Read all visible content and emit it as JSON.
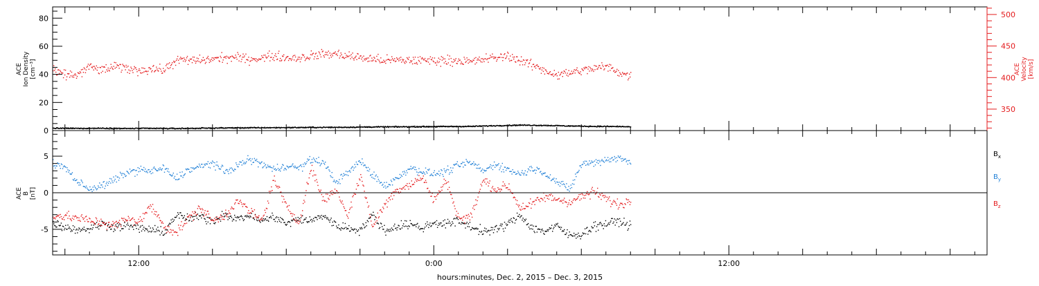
{
  "colors": {
    "axis": "#000000",
    "density": "#000000",
    "velocity": "#e41a1c",
    "bx": "#000000",
    "by": "#1f7fd6",
    "bz": "#e41a1c"
  },
  "xaxis": {
    "title": "hours:minutes, Dec.  2, 2015 – Dec.  3, 2015",
    "ticks": [
      "12:00",
      "0:00",
      "12:00"
    ],
    "tick_hours": [
      12,
      24,
      36
    ],
    "range_hours": [
      8.5,
      46.5
    ],
    "data_end_hours": 32.0
  },
  "chart_data": [
    {
      "type": "scatter",
      "panel": "plasma",
      "left_axis": {
        "label_lines": [
          "ACE",
          "Ion Density",
          "[cm⁻³]"
        ],
        "ylim": [
          0,
          88
        ],
        "ticks": [
          0,
          20,
          40,
          60,
          80
        ]
      },
      "right_axis": {
        "label_lines": [
          "ACE",
          "Velocity",
          "[km/s]"
        ],
        "ylim": [
          316,
          512
        ],
        "ticks": [
          350,
          400,
          450,
          500
        ]
      },
      "series": [
        {
          "key": "density",
          "axis": "left",
          "color": "#000000",
          "x": [
            8.5,
            9.5,
            10.5,
            11.5,
            12.5,
            13.5,
            14.5,
            15.5,
            16.5,
            17.5,
            18.5,
            19.5,
            20.5,
            21.5,
            22.5,
            23.5,
            24.5,
            25.5,
            26.5,
            27.5,
            28.5,
            29.5,
            30.5,
            31.5,
            32.0
          ],
          "y": [
            2.0,
            1.9,
            2.0,
            1.8,
            1.9,
            1.8,
            2.0,
            2.2,
            2.3,
            2.4,
            2.5,
            2.6,
            2.7,
            2.9,
            3.0,
            3.1,
            3.2,
            3.3,
            3.8,
            4.2,
            4.0,
            3.6,
            3.3,
            3.2,
            3.0
          ],
          "jitter": 0.6
        },
        {
          "key": "velocity",
          "axis": "right",
          "color": "#e41a1c",
          "x": [
            8.5,
            9.0,
            9.5,
            10.0,
            10.5,
            11.0,
            11.5,
            12.0,
            12.5,
            13.0,
            13.5,
            14.0,
            14.5,
            15.0,
            15.5,
            16.0,
            16.5,
            17.0,
            17.5,
            18.0,
            18.5,
            19.0,
            19.5,
            20.0,
            20.5,
            21.0,
            21.5,
            22.0,
            22.5,
            23.0,
            23.5,
            24.0,
            24.5,
            25.0,
            25.5,
            26.0,
            26.5,
            27.0,
            27.5,
            28.0,
            28.5,
            29.0,
            29.5,
            30.0,
            30.5,
            31.0,
            31.5,
            32.0
          ],
          "y": [
            410,
            405,
            405,
            418,
            412,
            418,
            415,
            412,
            415,
            412,
            428,
            428,
            428,
            430,
            432,
            432,
            430,
            432,
            435,
            432,
            432,
            435,
            438,
            438,
            435,
            432,
            430,
            428,
            428,
            428,
            428,
            428,
            428,
            428,
            425,
            430,
            432,
            435,
            428,
            420,
            412,
            405,
            408,
            412,
            415,
            418,
            410,
            402
          ],
          "jitter": 11
        }
      ]
    },
    {
      "type": "scatter",
      "panel": "magnetic",
      "left_axis": {
        "label_lines": [
          "ACE",
          "B",
          "[nT]"
        ],
        "ylim": [
          -8.5,
          8.5
        ],
        "ticks": [
          -5,
          0,
          5
        ],
        "zero_line": true
      },
      "series": [
        {
          "key": "bx",
          "name": "B",
          "subscript": "x",
          "color": "#000000",
          "x": [
            8.5,
            9.0,
            9.5,
            10.0,
            10.5,
            11.0,
            11.5,
            12.0,
            12.5,
            13.0,
            13.5,
            14.0,
            14.5,
            15.0,
            15.5,
            16.0,
            16.5,
            17.0,
            17.5,
            18.0,
            18.5,
            19.0,
            19.5,
            20.0,
            20.5,
            21.0,
            21.5,
            22.0,
            22.5,
            23.0,
            23.5,
            24.0,
            24.5,
            25.0,
            25.5,
            26.0,
            26.5,
            27.0,
            27.5,
            28.0,
            28.5,
            29.0,
            29.5,
            30.0,
            30.5,
            31.0,
            31.5,
            32.0
          ],
          "y": [
            -4.0,
            -4.6,
            -5.0,
            -4.8,
            -4.2,
            -4.6,
            -4.4,
            -4.8,
            -5.0,
            -5.4,
            -3.0,
            -3.5,
            -3.2,
            -3.8,
            -2.8,
            -3.6,
            -3.0,
            -3.8,
            -3.2,
            -4.2,
            -3.5,
            -3.8,
            -3.0,
            -4.4,
            -4.8,
            -5.0,
            -3.0,
            -5.2,
            -4.5,
            -4.2,
            -4.8,
            -4.0,
            -4.2,
            -3.8,
            -4.6,
            -5.2,
            -5.0,
            -4.2,
            -3.0,
            -4.8,
            -5.2,
            -4.5,
            -5.8,
            -5.6,
            -4.5,
            -4.2,
            -3.8,
            -4.5
          ],
          "jitter": 0.9
        },
        {
          "key": "by",
          "name": "B",
          "subscript": "y",
          "color": "#1f7fd6",
          "x": [
            8.5,
            9.0,
            9.5,
            10.0,
            10.5,
            11.0,
            11.5,
            12.0,
            12.5,
            13.0,
            13.5,
            14.0,
            14.5,
            15.0,
            15.5,
            16.0,
            16.5,
            17.0,
            17.5,
            18.0,
            18.5,
            19.0,
            19.5,
            20.0,
            20.5,
            21.0,
            21.5,
            22.0,
            22.5,
            23.0,
            23.5,
            24.0,
            24.5,
            25.0,
            25.5,
            26.0,
            26.5,
            27.0,
            27.5,
            28.0,
            28.5,
            29.0,
            29.5,
            30.0,
            30.5,
            31.0,
            31.5,
            32.0
          ],
          "y": [
            4.0,
            3.5,
            1.5,
            0.6,
            1.0,
            1.8,
            2.8,
            3.2,
            3.0,
            3.4,
            2.0,
            3.2,
            3.6,
            4.2,
            2.8,
            3.8,
            4.6,
            4.0,
            3.2,
            3.8,
            3.4,
            4.6,
            4.2,
            1.5,
            2.8,
            4.4,
            2.5,
            1.0,
            2.0,
            3.5,
            3.0,
            2.6,
            3.0,
            3.8,
            4.2,
            3.0,
            4.0,
            3.2,
            2.6,
            3.4,
            2.8,
            1.5,
            0.5,
            4.0,
            4.2,
            4.6,
            4.8,
            4.2
          ],
          "jitter": 0.8
        },
        {
          "key": "bz",
          "name": "B",
          "subscript": "z",
          "color": "#e41a1c",
          "x": [
            8.5,
            9.0,
            9.5,
            10.0,
            10.5,
            11.0,
            11.5,
            12.0,
            12.5,
            13.0,
            13.5,
            14.0,
            14.5,
            15.0,
            15.5,
            16.0,
            16.5,
            17.0,
            17.5,
            18.0,
            18.5,
            19.0,
            19.5,
            20.0,
            20.5,
            21.0,
            21.5,
            22.0,
            22.5,
            23.0,
            23.5,
            24.0,
            24.5,
            25.0,
            25.5,
            26.0,
            26.5,
            27.0,
            27.5,
            28.0,
            28.5,
            29.0,
            29.5,
            30.0,
            30.5,
            31.0,
            31.5,
            32.0
          ],
          "y": [
            -3.0,
            -3.2,
            -3.4,
            -3.8,
            -4.0,
            -4.4,
            -3.6,
            -3.8,
            -1.8,
            -4.4,
            -5.4,
            -3.5,
            -2.0,
            -3.8,
            -3.0,
            -1.0,
            -2.5,
            -3.8,
            2.0,
            -2.0,
            -4.0,
            3.5,
            -1.0,
            0.5,
            -3.0,
            2.5,
            -4.5,
            -1.5,
            0.5,
            1.2,
            2.2,
            -1.0,
            1.8,
            -3.5,
            -3.2,
            1.8,
            0.5,
            1.0,
            -2.0,
            -1.5,
            -0.5,
            -0.8,
            -1.2,
            -0.5,
            0.2,
            -0.8,
            -1.6,
            -1.0
          ],
          "jitter": 1.0
        }
      ]
    }
  ]
}
